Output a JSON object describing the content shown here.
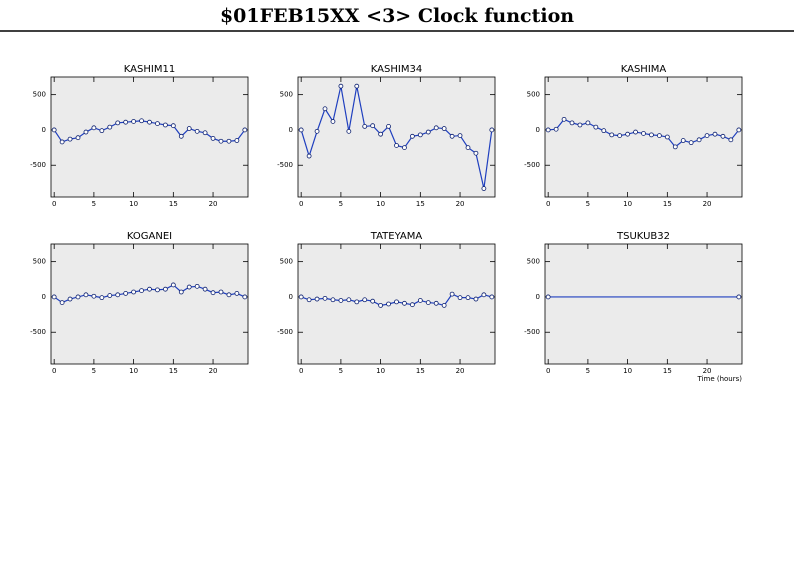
{
  "title": "$01FEB15XX <3>  Clock function",
  "chart_data": [
    {
      "type": "line",
      "title": "KASHIM11",
      "color": "#1f3fbf",
      "x": [
        0,
        1,
        2,
        3,
        4,
        5,
        6,
        7,
        8,
        9,
        10,
        11,
        12,
        13,
        14,
        15,
        16,
        17,
        18,
        19,
        20,
        21,
        22,
        23,
        24
      ],
      "values": [
        0,
        -170,
        -130,
        -110,
        -30,
        30,
        -10,
        40,
        100,
        110,
        120,
        130,
        110,
        90,
        70,
        60,
        -90,
        20,
        -20,
        -40,
        -120,
        -160,
        -160,
        -150,
        0
      ],
      "xlim": [
        -0.4,
        24.4
      ],
      "ylim": [
        -950,
        750
      ],
      "xticks": [
        0,
        5,
        10,
        15,
        20
      ],
      "yticks": [
        -500,
        0,
        500
      ]
    },
    {
      "type": "line",
      "title": "KASHIM34",
      "color": "#1f3fbf",
      "x": [
        0,
        1,
        2,
        3,
        4,
        5,
        6,
        7,
        8,
        9,
        10,
        11,
        12,
        13,
        14,
        15,
        16,
        17,
        18,
        19,
        20,
        21,
        22,
        23,
        24
      ],
      "values": [
        0,
        -370,
        -20,
        300,
        120,
        620,
        -20,
        620,
        50,
        60,
        -60,
        50,
        -220,
        -250,
        -90,
        -70,
        -30,
        30,
        20,
        -90,
        -80,
        -250,
        -330,
        -830,
        0
      ],
      "xlim": [
        -0.4,
        24.4
      ],
      "ylim": [
        -950,
        750
      ],
      "xticks": [
        0,
        5,
        10,
        15,
        20
      ],
      "yticks": [
        -500,
        0,
        500
      ]
    },
    {
      "type": "line",
      "title": "KASHIMA",
      "color": "#1f3fbf",
      "x": [
        0,
        1,
        2,
        3,
        4,
        5,
        6,
        7,
        8,
        9,
        10,
        11,
        12,
        13,
        14,
        15,
        16,
        17,
        18,
        19,
        20,
        21,
        22,
        23,
        24
      ],
      "values": [
        0,
        10,
        150,
        100,
        70,
        100,
        40,
        -10,
        -70,
        -80,
        -60,
        -30,
        -50,
        -70,
        -80,
        -100,
        -240,
        -150,
        -180,
        -140,
        -80,
        -60,
        -90,
        -140,
        0
      ],
      "xlim": [
        -0.4,
        24.4
      ],
      "ylim": [
        -950,
        750
      ],
      "xticks": [
        0,
        5,
        10,
        15,
        20
      ],
      "yticks": [
        -500,
        0,
        500
      ]
    },
    {
      "type": "line",
      "title": "KOGANEI",
      "color": "#1f3fbf",
      "x": [
        0,
        1,
        2,
        3,
        4,
        5,
        6,
        7,
        8,
        9,
        10,
        11,
        12,
        13,
        14,
        15,
        16,
        17,
        18,
        19,
        20,
        21,
        22,
        23,
        24
      ],
      "values": [
        0,
        -80,
        -30,
        0,
        30,
        10,
        -10,
        20,
        30,
        50,
        70,
        90,
        110,
        100,
        110,
        170,
        70,
        140,
        150,
        110,
        60,
        70,
        30,
        50,
        0
      ],
      "xlim": [
        -0.4,
        24.4
      ],
      "ylim": [
        -950,
        750
      ],
      "xticks": [
        0,
        5,
        10,
        15,
        20
      ],
      "yticks": [
        -500,
        0,
        500
      ]
    },
    {
      "type": "line",
      "title": "TATEYAMA",
      "color": "#1f3fbf",
      "x": [
        0,
        1,
        2,
        3,
        4,
        5,
        6,
        7,
        8,
        9,
        10,
        11,
        12,
        13,
        14,
        15,
        16,
        17,
        18,
        19,
        20,
        21,
        22,
        23,
        24
      ],
      "values": [
        0,
        -40,
        -30,
        -20,
        -40,
        -50,
        -40,
        -70,
        -40,
        -60,
        -120,
        -100,
        -70,
        -90,
        -110,
        -50,
        -80,
        -90,
        -120,
        40,
        -10,
        -10,
        -30,
        30,
        0
      ],
      "xlim": [
        -0.4,
        24.4
      ],
      "ylim": [
        -950,
        750
      ],
      "xticks": [
        0,
        5,
        10,
        15,
        20
      ],
      "yticks": [
        -500,
        0,
        500
      ]
    },
    {
      "type": "line",
      "title": "TSUKUB32",
      "color": "#1f3fbf",
      "xlabel": "Time (hours)",
      "x": [
        0,
        24
      ],
      "values": [
        0,
        0
      ],
      "xlim": [
        -0.4,
        24.4
      ],
      "ylim": [
        -950,
        750
      ],
      "xticks": [
        0,
        5,
        10,
        15,
        20
      ],
      "yticks": [
        -500,
        0,
        500
      ]
    }
  ]
}
